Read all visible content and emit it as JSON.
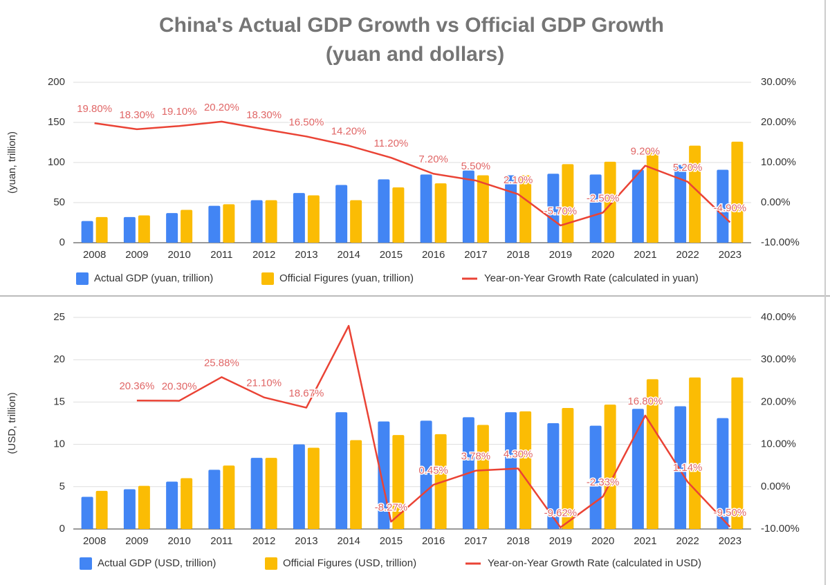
{
  "chart_data": [
    {
      "type": "combo",
      "title": "China's Actual GDP Growth vs Official GDP Growth",
      "subtitle": "(yuan and dollars)",
      "y_label": "(yuan, trillion)",
      "categories": [
        "2008",
        "2009",
        "2010",
        "2011",
        "2012",
        "2013",
        "2014",
        "2015",
        "2016",
        "2017",
        "2018",
        "2019",
        "2020",
        "2021",
        "2022",
        "2023"
      ],
      "series": [
        {
          "name": "Actual GDP (yuan, trillion)",
          "type": "bar",
          "color": "#4285f4",
          "values": [
            27,
            32,
            37,
            46,
            53,
            62,
            72,
            79,
            85,
            90,
            84,
            86,
            85,
            91,
            97,
            91
          ]
        },
        {
          "name": "Official Figures (yuan, trillion)",
          "type": "bar",
          "color": "#fbbc04",
          "values": [
            32,
            34,
            41,
            48,
            53,
            59,
            53,
            69,
            74,
            84,
            84,
            98,
            101,
            115,
            121,
            126
          ]
        },
        {
          "name": "Year-on-Year Growth Rate (calculated in yuan)",
          "type": "line",
          "axis": "y2",
          "color": "#ea4335",
          "values": [
            19.8,
            18.3,
            19.1,
            20.2,
            18.3,
            16.5,
            14.2,
            11.2,
            7.2,
            5.5,
            2.1,
            -5.7,
            -2.5,
            9.2,
            5.2,
            -4.9
          ],
          "value_labels": [
            "19.80%",
            "18.30%",
            "19.10%",
            "20.20%",
            "18.30%",
            "16.50%",
            "14.20%",
            "11.20%",
            "7.20%",
            "5.50%",
            "2.10%",
            "-5.70%",
            "-2.50%",
            "9.20%",
            "5.20%",
            "-4.90%"
          ]
        }
      ],
      "ylim": [
        0,
        200
      ],
      "yticks": [
        0,
        50,
        100,
        150,
        200
      ],
      "y2lim": [
        -10,
        30
      ],
      "y2ticks": [
        {
          "value": -10,
          "label": "-10.00%"
        },
        {
          "value": 0,
          "label": "0.00%"
        },
        {
          "value": 10,
          "label": "10.00%"
        },
        {
          "value": 20,
          "label": "20.00%"
        },
        {
          "value": 30,
          "label": "30.00%"
        }
      ],
      "grid": true,
      "legend": "bottom"
    },
    {
      "type": "combo",
      "y_label": "(USD, trillion)",
      "categories": [
        "2008",
        "2009",
        "2010",
        "2011",
        "2012",
        "2013",
        "2014",
        "2015",
        "2016",
        "2017",
        "2018",
        "2019",
        "2020",
        "2021",
        "2022",
        "2023"
      ],
      "series": [
        {
          "name": "Actual GDP (USD, trillion)",
          "type": "bar",
          "color": "#4285f4",
          "values": [
            3.8,
            4.7,
            5.6,
            7.0,
            8.4,
            10.0,
            13.8,
            12.7,
            12.8,
            13.2,
            13.8,
            12.5,
            12.2,
            14.2,
            14.5,
            13.1
          ]
        },
        {
          "name": "Official Figures (USD, trillion)",
          "type": "bar",
          "color": "#fbbc04",
          "values": [
            4.5,
            5.1,
            6.0,
            7.5,
            8.4,
            9.6,
            10.5,
            11.1,
            11.2,
            12.3,
            13.9,
            14.3,
            14.7,
            17.7,
            17.9,
            17.9
          ]
        },
        {
          "name": "Year-on-Year Growth Rate (calculated in USD)",
          "type": "line",
          "axis": "y2",
          "color": "#ea4335",
          "values": [
            null,
            20.36,
            20.3,
            25.88,
            21.1,
            18.67,
            38.0,
            -8.27,
            0.45,
            3.78,
            4.3,
            -9.62,
            -2.33,
            16.8,
            1.14,
            -9.5
          ],
          "value_labels": [
            null,
            "20.36%",
            "20.30%",
            "25.88%",
            "21.10%",
            "18.67%",
            null,
            "-8.27%",
            "0.45%",
            "3.78%",
            "4.30%",
            "-9.62%",
            "-2.33%",
            "16.80%",
            "1.14%",
            "-9.50%"
          ]
        }
      ],
      "ylim": [
        0,
        25
      ],
      "yticks": [
        0,
        5,
        10,
        15,
        20,
        25
      ],
      "y2lim": [
        -10,
        40
      ],
      "y2ticks": [
        {
          "value": -10,
          "label": "-10.00%"
        },
        {
          "value": 0,
          "label": "0.00%"
        },
        {
          "value": 10,
          "label": "10.00%"
        },
        {
          "value": 20,
          "label": "20.00%"
        },
        {
          "value": 30,
          "label": "30.00%"
        },
        {
          "value": 40,
          "label": "40.00%"
        }
      ],
      "grid": true,
      "legend": "bottom"
    }
  ]
}
